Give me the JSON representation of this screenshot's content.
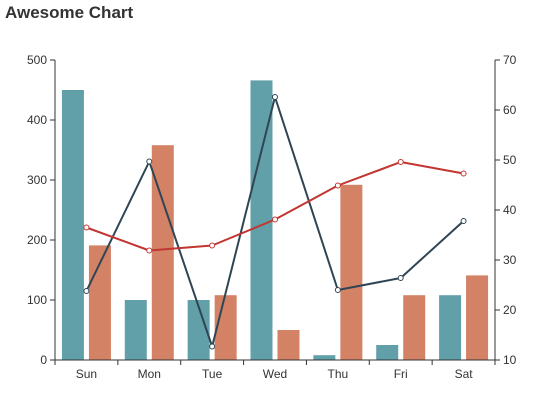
{
  "chart_data": {
    "type": "bar",
    "title": "Awesome Chart",
    "categories": [
      "Sun",
      "Mon",
      "Tue",
      "Wed",
      "Thu",
      "Fri",
      "Sat"
    ],
    "y_left": {
      "range": [
        0,
        500
      ],
      "ticks": [
        0,
        100,
        200,
        300,
        400,
        500
      ]
    },
    "y_right": {
      "range": [
        10,
        70
      ],
      "ticks": [
        10,
        20,
        30,
        40,
        50,
        60,
        70
      ]
    },
    "grid": false,
    "series": [
      {
        "type": "bar",
        "axis": "left",
        "color": "#61a0a8",
        "values": [
          450,
          100,
          100,
          466,
          8,
          25,
          108
        ]
      },
      {
        "type": "bar",
        "axis": "left",
        "color": "#d48265",
        "values": [
          191,
          358,
          108,
          50,
          292,
          108,
          141
        ]
      },
      {
        "type": "line",
        "axis": "right",
        "color": "#2f4554",
        "values": [
          23.8,
          49.7,
          12.7,
          62.6,
          24.0,
          26.4,
          37.8
        ]
      },
      {
        "type": "line",
        "axis": "right",
        "color": "#c23531",
        "values": [
          36.5,
          31.9,
          32.9,
          38.1,
          44.9,
          49.6,
          47.3
        ]
      }
    ]
  }
}
